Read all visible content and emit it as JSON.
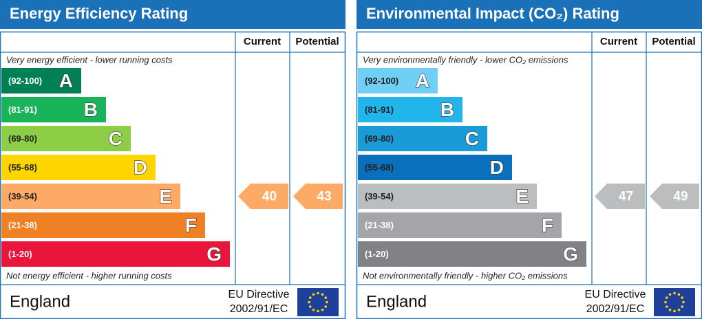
{
  "panels": [
    {
      "title": "Energy Efficiency Rating",
      "columns": [
        "Current",
        "Potential"
      ],
      "top_note": "Very energy efficient - lower running costs",
      "bottom_note": "Not energy efficient - higher running costs",
      "bands": [
        {
          "range": "(92-100)",
          "letter": "A",
          "color": "#008054",
          "text_color": "#ffffff"
        },
        {
          "range": "(81-91)",
          "letter": "B",
          "color": "#19b459",
          "text_color": "#ffffff"
        },
        {
          "range": "(69-80)",
          "letter": "C",
          "color": "#8dce46",
          "text_color": "#222222"
        },
        {
          "range": "(55-68)",
          "letter": "D",
          "color": "#ffd500",
          "text_color": "#222222"
        },
        {
          "range": "(39-54)",
          "letter": "E",
          "color": "#fcaa65",
          "text_color": "#222222"
        },
        {
          "range": "(21-38)",
          "letter": "F",
          "color": "#ef8023",
          "text_color": "#ffffff"
        },
        {
          "range": "(1-20)",
          "letter": "G",
          "color": "#e9153b",
          "text_color": "#ffffff"
        }
      ],
      "current": 40,
      "potential": 43,
      "footer": {
        "country": "England",
        "directive": [
          "EU Directive",
          "2002/91/EC"
        ]
      }
    },
    {
      "title": "Environmental Impact (CO₂) Rating",
      "columns": [
        "Current",
        "Potential"
      ],
      "top_note": "Very environmentally friendly - lower CO₂ emissions",
      "bottom_note": "Not environmentally friendly - higher CO₂ emissions",
      "bands": [
        {
          "range": "(92-100)",
          "letter": "A",
          "color": "#6fcff5",
          "text_color": "#222222"
        },
        {
          "range": "(81-91)",
          "letter": "B",
          "color": "#22b5ec",
          "text_color": "#222222"
        },
        {
          "range": "(69-80)",
          "letter": "C",
          "color": "#1a9ad6",
          "text_color": "#222222"
        },
        {
          "range": "(55-68)",
          "letter": "D",
          "color": "#0b70bc",
          "text_color": "#222222"
        },
        {
          "range": "(39-54)",
          "letter": "E",
          "color": "#bbbdbf",
          "text_color": "#222222"
        },
        {
          "range": "(21-38)",
          "letter": "F",
          "color": "#a3a5a8",
          "text_color": "#ffffff"
        },
        {
          "range": "(1-20)",
          "letter": "G",
          "color": "#808285",
          "text_color": "#ffffff"
        }
      ],
      "current": 47,
      "potential": 49,
      "footer": {
        "country": "England",
        "directive": [
          "EU Directive",
          "2002/91/EC"
        ]
      }
    }
  ]
}
